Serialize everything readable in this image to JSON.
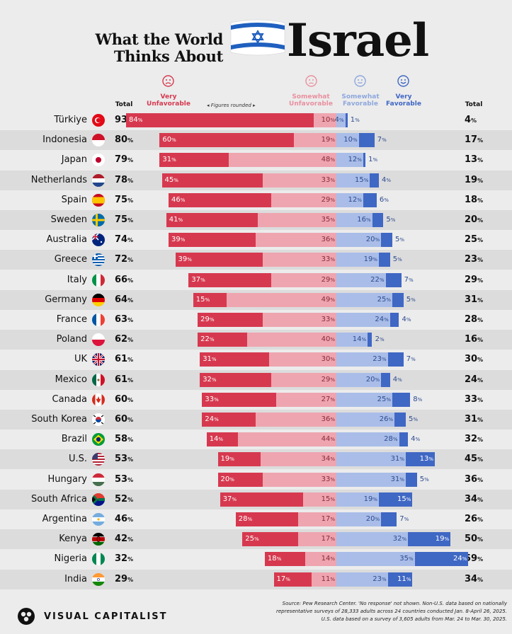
{
  "title": {
    "line1": "What the World",
    "line2": "Thinks About",
    "big": "Israel"
  },
  "headers": {
    "total_left": "Total",
    "very_unfav": [
      "Very",
      "Unfavorable"
    ],
    "somewhat_unfav": [
      "Somewhat",
      "Unfavorable"
    ],
    "somewhat_fav": [
      "Somewhat",
      "Favorable"
    ],
    "very_fav": [
      "Very",
      "Favorable"
    ],
    "total_right": "Total",
    "note": "◂ Figures rounded ▸"
  },
  "colors": {
    "very_unfav": "#d6394f",
    "somewhat_unfav": "#eea5b0",
    "somewhat_fav": "#a9bde8",
    "very_fav": "#3f67c4"
  },
  "chart_data": {
    "type": "bar",
    "title": "What the World Thinks About Israel",
    "series_names": [
      "Very Unfavorable",
      "Somewhat Unfavorable",
      "Somewhat Favorable",
      "Very Favorable"
    ],
    "unit": "%",
    "rows": [
      {
        "country": "Türkiye",
        "total_unfav": 93,
        "very_unfav": 84,
        "somewhat_unfav": 10,
        "somewhat_fav": 4,
        "very_fav": 1,
        "total_fav": 4
      },
      {
        "country": "Indonesia",
        "total_unfav": 80,
        "very_unfav": 60,
        "somewhat_unfav": 19,
        "somewhat_fav": 10,
        "very_fav": 7,
        "total_fav": 17
      },
      {
        "country": "Japan",
        "total_unfav": 79,
        "very_unfav": 31,
        "somewhat_unfav": 48,
        "somewhat_fav": 12,
        "very_fav": 1,
        "total_fav": 13
      },
      {
        "country": "Netherlands",
        "total_unfav": 78,
        "very_unfav": 45,
        "somewhat_unfav": 33,
        "somewhat_fav": 15,
        "very_fav": 4,
        "total_fav": 19
      },
      {
        "country": "Spain",
        "total_unfav": 75,
        "very_unfav": 46,
        "somewhat_unfav": 29,
        "somewhat_fav": 12,
        "very_fav": 6,
        "total_fav": 18
      },
      {
        "country": "Sweden",
        "total_unfav": 75,
        "very_unfav": 41,
        "somewhat_unfav": 35,
        "somewhat_fav": 16,
        "very_fav": 5,
        "total_fav": 20
      },
      {
        "country": "Australia",
        "total_unfav": 74,
        "very_unfav": 39,
        "somewhat_unfav": 36,
        "somewhat_fav": 20,
        "very_fav": 5,
        "total_fav": 25
      },
      {
        "country": "Greece",
        "total_unfav": 72,
        "very_unfav": 39,
        "somewhat_unfav": 33,
        "somewhat_fav": 19,
        "very_fav": 5,
        "total_fav": 23
      },
      {
        "country": "Italy",
        "total_unfav": 66,
        "very_unfav": 37,
        "somewhat_unfav": 29,
        "somewhat_fav": 22,
        "very_fav": 7,
        "total_fav": 29
      },
      {
        "country": "Germany",
        "total_unfav": 64,
        "very_unfav": 15,
        "somewhat_unfav": 49,
        "somewhat_fav": 25,
        "very_fav": 5,
        "total_fav": 31
      },
      {
        "country": "France",
        "total_unfav": 63,
        "very_unfav": 29,
        "somewhat_unfav": 33,
        "somewhat_fav": 24,
        "very_fav": 4,
        "total_fav": 28
      },
      {
        "country": "Poland",
        "total_unfav": 62,
        "very_unfav": 22,
        "somewhat_unfav": 40,
        "somewhat_fav": 14,
        "very_fav": 2,
        "total_fav": 16
      },
      {
        "country": "UK",
        "total_unfav": 61,
        "very_unfav": 31,
        "somewhat_unfav": 30,
        "somewhat_fav": 23,
        "very_fav": 7,
        "total_fav": 30
      },
      {
        "country": "Mexico",
        "total_unfav": 61,
        "very_unfav": 32,
        "somewhat_unfav": 29,
        "somewhat_fav": 20,
        "very_fav": 4,
        "total_fav": 24
      },
      {
        "country": "Canada",
        "total_unfav": 60,
        "very_unfav": 33,
        "somewhat_unfav": 27,
        "somewhat_fav": 25,
        "very_fav": 8,
        "total_fav": 33
      },
      {
        "country": "South Korea",
        "total_unfav": 60,
        "very_unfav": 24,
        "somewhat_unfav": 36,
        "somewhat_fav": 26,
        "very_fav": 5,
        "total_fav": 31
      },
      {
        "country": "Brazil",
        "total_unfav": 58,
        "very_unfav": 14,
        "somewhat_unfav": 44,
        "somewhat_fav": 28,
        "very_fav": 4,
        "total_fav": 32
      },
      {
        "country": "U.S.",
        "total_unfav": 53,
        "very_unfav": 19,
        "somewhat_unfav": 34,
        "somewhat_fav": 31,
        "very_fav": 13,
        "total_fav": 45
      },
      {
        "country": "Hungary",
        "total_unfav": 53,
        "very_unfav": 20,
        "somewhat_unfav": 33,
        "somewhat_fav": 31,
        "very_fav": 5,
        "total_fav": 36
      },
      {
        "country": "South Africa",
        "total_unfav": 52,
        "very_unfav": 37,
        "somewhat_unfav": 15,
        "somewhat_fav": 19,
        "very_fav": 15,
        "total_fav": 34
      },
      {
        "country": "Argentina",
        "total_unfav": 46,
        "very_unfav": 28,
        "somewhat_unfav": 17,
        "somewhat_fav": 20,
        "very_fav": 7,
        "total_fav": 26
      },
      {
        "country": "Kenya",
        "total_unfav": 42,
        "very_unfav": 25,
        "somewhat_unfav": 17,
        "somewhat_fav": 32,
        "very_fav": 19,
        "total_fav": 50
      },
      {
        "country": "Nigeria",
        "total_unfav": 32,
        "very_unfav": 18,
        "somewhat_unfav": 14,
        "somewhat_fav": 35,
        "very_fav": 24,
        "total_fav": 59
      },
      {
        "country": "India",
        "total_unfav": 29,
        "very_unfav": 17,
        "somewhat_unfav": 11,
        "somewhat_fav": 23,
        "very_fav": 11,
        "total_fav": 34
      }
    ]
  },
  "footer": {
    "brand": "VISUAL CAPITALIST",
    "source_1": "Source: Pew Research Center. 'No response' not shown. Non-U.S. data based on nationally",
    "source_2": "representative surveys of 28,333 adults across 24 countries conducted Jan. 8-April 26, 2025.",
    "source_3": "U.S. data based on a survey of 3,605 adults from Mar. 24 to Mar. 30, 2025."
  }
}
